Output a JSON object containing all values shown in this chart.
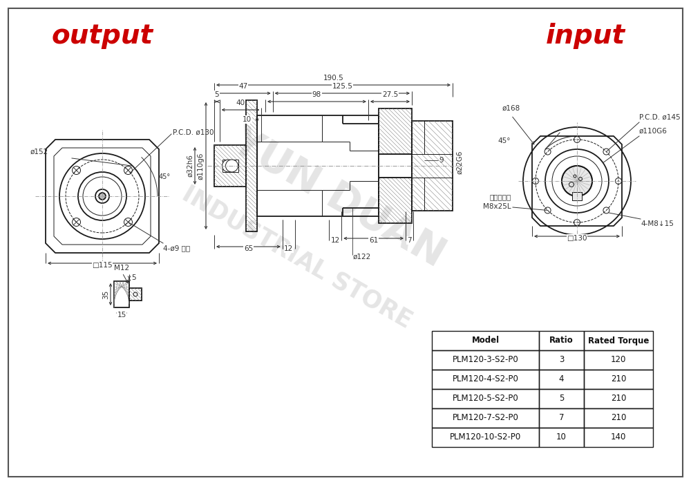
{
  "title_output": "output",
  "title_input": "input",
  "title_color": "#cc0000",
  "table_headers": [
    "Model",
    "Ratio",
    "Rated Torque"
  ],
  "table_rows": [
    [
      "PLM120-3-S2-P0",
      "3",
      "120"
    ],
    [
      "PLM120-4-S2-P0",
      "4",
      "210"
    ],
    [
      "PLM120-5-S2-P0",
      "5",
      "210"
    ],
    [
      "PLM120-7-S2-P0",
      "7",
      "210"
    ],
    [
      "PLM120-10-S2-P0",
      "10",
      "140"
    ]
  ],
  "lc": "#1a1a1a",
  "lw_main": 1.3,
  "lw_thin": 0.7,
  "lw_dim": 0.7,
  "lw_hatch": 0.4
}
